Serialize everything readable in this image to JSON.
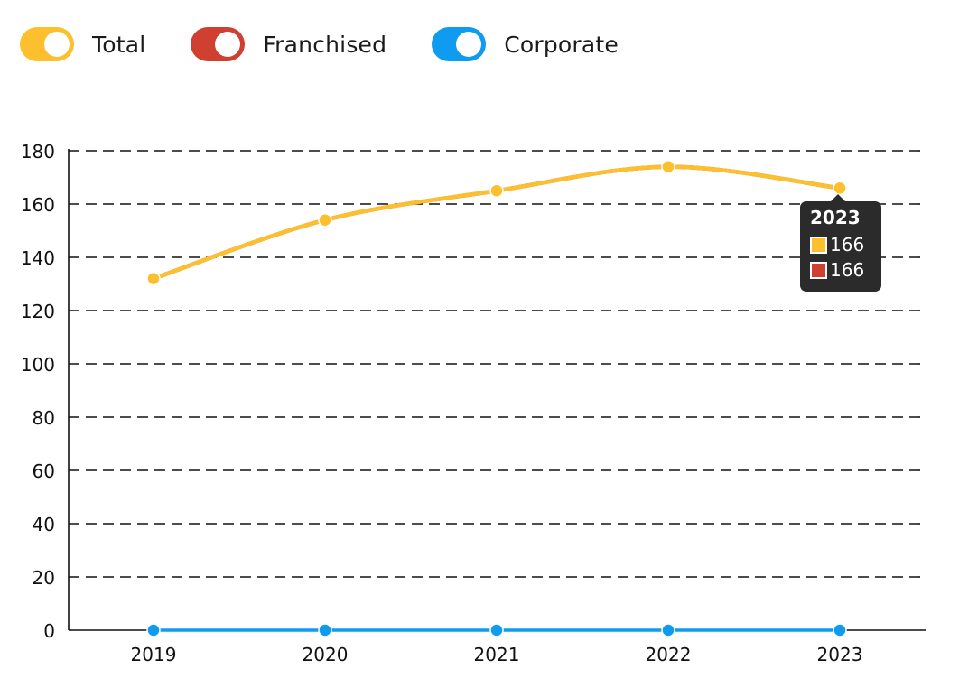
{
  "legend": [
    {
      "label": "Total",
      "color": "#FCC02E"
    },
    {
      "label": "Franchised",
      "color": "#CF4030"
    },
    {
      "label": "Corporate",
      "color": "#0E9BF0"
    }
  ],
  "tooltip": {
    "title": "2023",
    "rows": [
      {
        "value": "166",
        "color": "#FCC02E"
      },
      {
        "value": "166",
        "color": "#CF4030"
      }
    ]
  },
  "chart_data": {
    "type": "line",
    "x": [
      "2019",
      "2020",
      "2021",
      "2022",
      "2023"
    ],
    "series": [
      {
        "name": "Total",
        "color": "#FCC02E",
        "values": [
          132,
          154,
          165,
          174,
          166
        ]
      },
      {
        "name": "Franchised",
        "color": "#CF4030",
        "values": [
          132,
          154,
          165,
          174,
          166
        ]
      },
      {
        "name": "Corporate",
        "color": "#0E9BF0",
        "values": [
          0,
          0,
          0,
          0,
          0
        ]
      }
    ],
    "ylim": [
      0,
      180
    ],
    "yticks": [
      0,
      20,
      40,
      60,
      80,
      100,
      120,
      140,
      160,
      180
    ],
    "grid": true,
    "legend_position": "top-left",
    "title": "",
    "xlabel": "",
    "ylabel": ""
  }
}
